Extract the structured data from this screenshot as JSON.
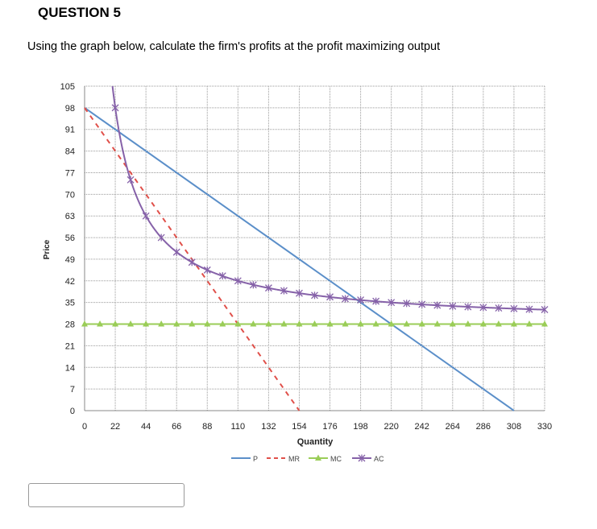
{
  "question": {
    "title": "QUESTION 5",
    "text": "Using the graph below, calculate the firm's profits at the profit maximizing output"
  },
  "colors": {
    "p": "#5b8fc9",
    "mr": "#e0504a",
    "mc": "#9acd57",
    "ac": "#8662a9",
    "grid": "#9a9a9a"
  },
  "chart_data": {
    "type": "line",
    "title": "",
    "xlabel": "Quantity",
    "ylabel": "Price",
    "xlim": [
      0,
      330
    ],
    "ylim": [
      0,
      105
    ],
    "x_ticks": [
      0,
      22,
      44,
      66,
      88,
      110,
      132,
      154,
      176,
      198,
      220,
      242,
      264,
      286,
      308,
      330
    ],
    "y_ticks": [
      0,
      7,
      14,
      21,
      28,
      35,
      42,
      49,
      56,
      63,
      70,
      77,
      84,
      91,
      98,
      105
    ],
    "grid": true,
    "legend_position": "bottom",
    "series": [
      {
        "name": "P",
        "style": "solid",
        "marker": "none",
        "x": [
          0,
          308
        ],
        "y": [
          98,
          0
        ]
      },
      {
        "name": "MR",
        "style": "dashed",
        "marker": "none",
        "x": [
          0,
          154
        ],
        "y": [
          98,
          0
        ]
      },
      {
        "name": "MC",
        "style": "solid",
        "marker": "triangle",
        "x": [
          0,
          11,
          22,
          33,
          44,
          55,
          66,
          77,
          88,
          99,
          110,
          121,
          132,
          143,
          154,
          165,
          176,
          187,
          198,
          209,
          220,
          231,
          242,
          253,
          264,
          275,
          286,
          297,
          308,
          319,
          330
        ],
        "y": [
          28,
          28,
          28,
          28,
          28,
          28,
          28,
          28,
          28,
          28,
          28,
          28,
          28,
          28,
          28,
          28,
          28,
          28,
          28,
          28,
          28,
          28,
          28,
          28,
          28,
          28,
          28,
          28,
          28,
          28,
          28
        ]
      },
      {
        "name": "AC",
        "style": "solid",
        "marker": "x",
        "x": [
          22,
          33,
          44,
          55,
          66,
          77,
          88,
          99,
          110,
          121,
          132,
          143,
          154,
          165,
          176,
          187,
          198,
          209,
          220,
          231,
          242,
          253,
          264,
          275,
          286,
          297,
          308,
          319,
          330
        ],
        "y": [
          98,
          74.7,
          63,
          56,
          51.3,
          48,
          45.5,
          43.6,
          42,
          40.7,
          39.7,
          38.8,
          38,
          37.3,
          36.8,
          36.2,
          35.8,
          35.4,
          35,
          34.7,
          34.4,
          34.1,
          33.8,
          33.6,
          33.4,
          33.2,
          33,
          32.8,
          32.7
        ]
      }
    ]
  }
}
